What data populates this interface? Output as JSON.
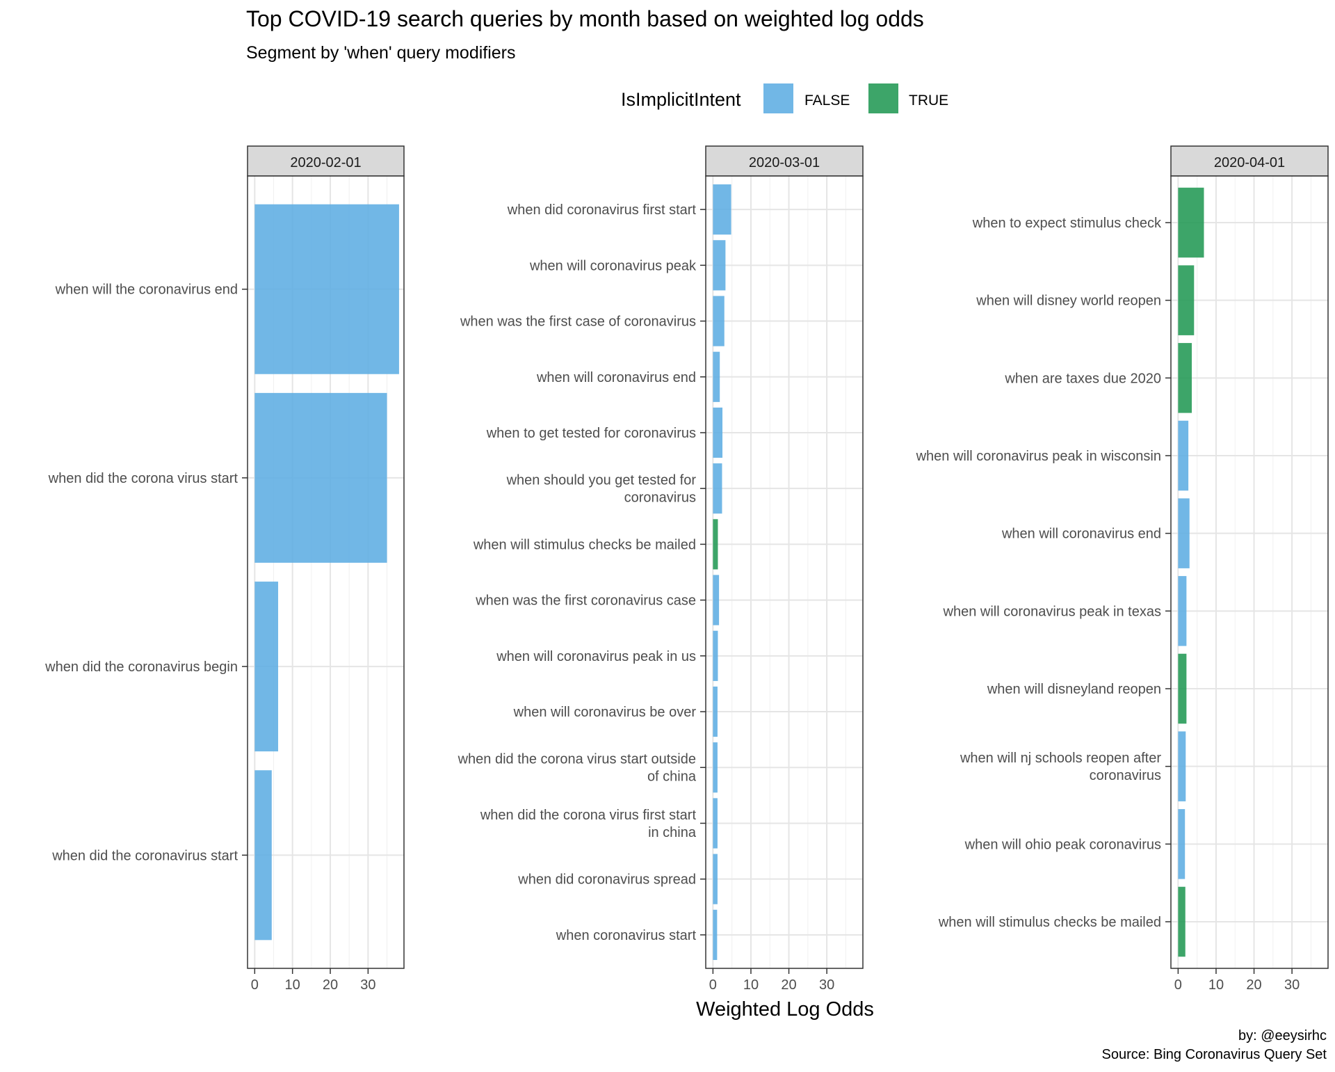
{
  "chart_data": {
    "type": "bar",
    "orientation": "horizontal",
    "title": "Top COVID-19 search queries by month based on weighted log odds",
    "subtitle": "Segment by 'when' query modifiers",
    "xlabel": "Weighted Log Odds",
    "xlim": [
      -1.9,
      39.5
    ],
    "xticks": [
      0,
      10,
      20,
      30
    ],
    "grid": true,
    "legend": {
      "title": "IsImplicitIntent",
      "placement": "top",
      "entries": [
        {
          "label": "FALSE",
          "color": "#5DADE2"
        },
        {
          "label": "TRUE",
          "color": "#229954"
        }
      ]
    },
    "caption": [
      "by: @eeysirhc",
      "Source: Bing Coronavirus Query Set"
    ],
    "panels": [
      {
        "facet": "2020-02-01",
        "bars": [
          {
            "label": "when will the coronavirus end",
            "value": 38.2,
            "implicit": "FALSE"
          },
          {
            "label": "when did the corona virus start",
            "value": 35.0,
            "implicit": "FALSE"
          },
          {
            "label": "when did the coronavirus begin",
            "value": 6.2,
            "implicit": "FALSE"
          },
          {
            "label": "when did the coronavirus start",
            "value": 4.5,
            "implicit": "FALSE"
          }
        ]
      },
      {
        "facet": "2020-03-01",
        "bars": [
          {
            "label": "when did coronavirus first start",
            "value": 4.8,
            "implicit": "FALSE"
          },
          {
            "label": "when will coronavirus peak",
            "value": 3.3,
            "implicit": "FALSE"
          },
          {
            "label": "when was the first case of coronavirus",
            "value": 3.0,
            "implicit": "FALSE"
          },
          {
            "label": "when will coronavirus end",
            "value": 1.8,
            "implicit": "FALSE"
          },
          {
            "label": "when to get tested for coronavirus",
            "value": 2.5,
            "implicit": "FALSE"
          },
          {
            "label": "when should you get tested for\ncoronavirus",
            "value": 2.4,
            "implicit": "FALSE"
          },
          {
            "label": "when will stimulus checks be mailed",
            "value": 1.3,
            "implicit": "TRUE"
          },
          {
            "label": "when was the first coronavirus case",
            "value": 1.6,
            "implicit": "FALSE"
          },
          {
            "label": "when will coronavirus peak in us",
            "value": 1.3,
            "implicit": "FALSE"
          },
          {
            "label": "when will coronavirus be over",
            "value": 1.2,
            "implicit": "FALSE"
          },
          {
            "label": "when did the corona virus start outside\nof china",
            "value": 1.2,
            "implicit": "FALSE"
          },
          {
            "label": "when did the corona virus first start\nin china",
            "value": 1.2,
            "implicit": "FALSE"
          },
          {
            "label": "when did coronavirus spread",
            "value": 1.2,
            "implicit": "FALSE"
          },
          {
            "label": "when coronavirus start",
            "value": 1.1,
            "implicit": "FALSE"
          }
        ]
      },
      {
        "facet": "2020-04-01",
        "bars": [
          {
            "label": "when to expect stimulus check",
            "value": 6.8,
            "implicit": "TRUE"
          },
          {
            "label": "when will disney world reopen",
            "value": 4.2,
            "implicit": "TRUE"
          },
          {
            "label": "when are taxes due 2020",
            "value": 3.6,
            "implicit": "TRUE"
          },
          {
            "label": "when will coronavirus peak in wisconsin",
            "value": 2.7,
            "implicit": "FALSE"
          },
          {
            "label": "when will coronavirus end",
            "value": 3.0,
            "implicit": "FALSE"
          },
          {
            "label": "when will coronavirus peak in texas",
            "value": 2.2,
            "implicit": "FALSE"
          },
          {
            "label": "when will disneyland reopen",
            "value": 2.2,
            "implicit": "TRUE"
          },
          {
            "label": "when will nj schools reopen after\ncoronavirus",
            "value": 2.0,
            "implicit": "FALSE"
          },
          {
            "label": "when will ohio peak coronavirus",
            "value": 1.8,
            "implicit": "FALSE"
          },
          {
            "label": "when will stimulus checks be mailed",
            "value": 1.9,
            "implicit": "TRUE"
          }
        ]
      }
    ]
  }
}
